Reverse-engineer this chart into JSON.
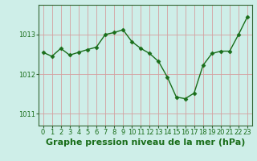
{
  "x": [
    0,
    1,
    2,
    3,
    4,
    5,
    6,
    7,
    8,
    9,
    10,
    11,
    12,
    13,
    14,
    15,
    16,
    17,
    18,
    19,
    20,
    21,
    22,
    23
  ],
  "y": [
    1012.55,
    1012.45,
    1012.65,
    1012.48,
    1012.55,
    1012.62,
    1012.68,
    1013.0,
    1013.05,
    1013.12,
    1012.82,
    1012.65,
    1012.52,
    1012.32,
    1011.92,
    1011.42,
    1011.38,
    1011.52,
    1012.22,
    1012.52,
    1012.58,
    1012.58,
    1013.0,
    1013.45
  ],
  "line_color": "#1a6e1a",
  "marker": "D",
  "marker_size": 2.5,
  "line_width": 1.0,
  "bg_color": "#ceeee8",
  "grid_color": "#d4a0a0",
  "xlabel": "Graphe pression niveau de la mer (hPa)",
  "xlabel_fontsize": 8,
  "ylabel_ticks": [
    1011,
    1012,
    1013
  ],
  "xlim": [
    -0.5,
    23.5
  ],
  "ylim": [
    1010.7,
    1013.75
  ],
  "tick_color": "#1a6e1a",
  "tick_fontsize": 6,
  "axis_label_color": "#1a6e1a",
  "spine_color": "#336633"
}
